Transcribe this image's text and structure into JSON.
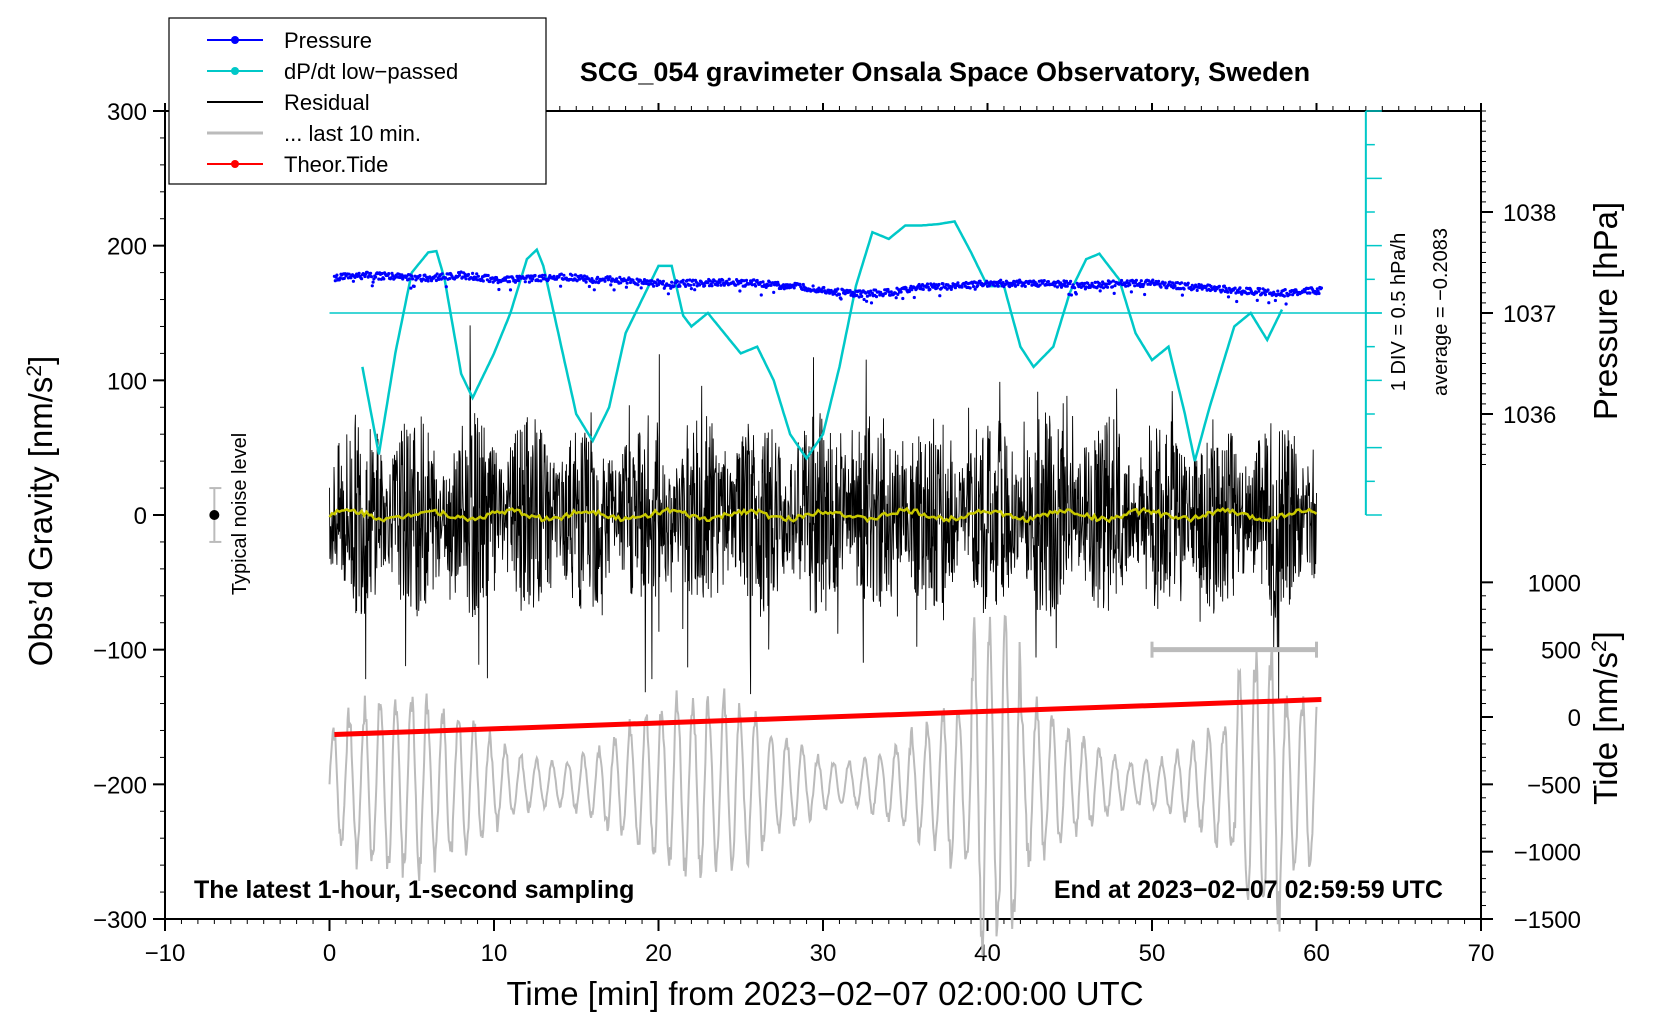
{
  "chart_data": {
    "type": "line",
    "title": "SCG_054 gravimeter Onsala Space Observatory, Sweden",
    "xlabel": "Time [min] from 2023−02−07 02:00:00 UTC",
    "ylabel_main": "Obs’d Gravity [nm/s",
    "ylabel_sup": "2",
    "ylabel_close": "]",
    "ylabel_pressure": "Pressure [hPa]",
    "ylabel_tide": "Tide [nm/s",
    "ylabel_tide_sup": "2",
    "ylabel_tide_close": "]",
    "xlim": [
      -10,
      70
    ],
    "ylim": [
      -300,
      300
    ],
    "x_ticks": [
      -10,
      0,
      10,
      20,
      30,
      40,
      50,
      60,
      70
    ],
    "x_tick_labels": [
      "−10",
      "0",
      "10",
      "20",
      "30",
      "40",
      "50",
      "60",
      "70"
    ],
    "y_ticks": [
      300,
      200,
      100,
      0,
      -100,
      -200,
      -300
    ],
    "y_tick_labels": [
      "300",
      "200",
      "100",
      "0",
      "−100",
      "−200",
      "−300"
    ],
    "pressure_ticks": [
      1038,
      1037,
      1036
    ],
    "pressure_tick_labels": [
      "1038",
      "1037",
      "1036"
    ],
    "pressure_axis": {
      "gravity_at_1037": 150,
      "gravity_per_hpa": 75
    },
    "tide_ticks": [
      1000,
      500,
      0,
      -500,
      -1000,
      -1500
    ],
    "tide_tick_labels": [
      "1000",
      "500",
      "0",
      "−500",
      "−1000",
      "−1500"
    ],
    "tide_axis": {
      "gravity_at_zero": -150,
      "gravity_per_unit": 0.1
    },
    "dpdt_axis": {
      "div_label": "1 DIV = 0.5 hPa/h",
      "average_label": "average = −0.2083",
      "x_position": 63,
      "y_range": [
        0,
        300
      ],
      "baseline": 150
    },
    "noise_level": {
      "label": "Typical noise level",
      "x": -7,
      "center": 0,
      "half_range": 20
    },
    "last_10_min_bar": {
      "x_range": [
        50,
        60
      ],
      "y": -100
    },
    "bottom_left_note": "The latest 1‑hour, 1‑second sampling",
    "bottom_right_note": "End at 2023−02−07 02:59:59 UTC",
    "legend": [
      {
        "label": "Pressure",
        "color": "#0000ff",
        "marker": true
      },
      {
        "label": "dP/dt low−passed",
        "color": "#00c8c8",
        "marker": true
      },
      {
        "label": "Residual",
        "color": "#000000",
        "marker": false
      },
      {
        "label": "... last 10 min.",
        "color": "#bbbbbb",
        "marker": false
      },
      {
        "label": "Theor.Tide",
        "color": "#ff0000",
        "marker": true
      }
    ],
    "series": [
      {
        "name": "Pressure",
        "color": "#0000ff",
        "axis": "gravity",
        "x": [
          0.3,
          2,
          4,
          6,
          8,
          10,
          12,
          14,
          16,
          18,
          20,
          22,
          24,
          26,
          28,
          30,
          32,
          34,
          36,
          38,
          40,
          42,
          44,
          46,
          48,
          50,
          52,
          54,
          56,
          58,
          60.3
        ],
        "values": [
          176,
          178,
          177,
          176,
          178,
          175,
          175,
          177,
          175,
          174,
          172,
          172,
          173,
          172,
          170,
          167,
          164,
          165,
          169,
          170,
          172,
          172,
          172,
          170,
          172,
          172,
          170,
          168,
          166,
          165,
          167
        ]
      },
      {
        "name": "dP/dt low−passed",
        "color": "#00c8c8",
        "axis": "gravity",
        "x": [
          2,
          3,
          4,
          5,
          6,
          6.5,
          7,
          8,
          8.7,
          10,
          11,
          12,
          12.6,
          13,
          14,
          15,
          16,
          17,
          18,
          19,
          20,
          20.8,
          21.5,
          22,
          23,
          24,
          25,
          26,
          27,
          28,
          29,
          30,
          31,
          32,
          33,
          34,
          35,
          36,
          37,
          38,
          39,
          40,
          41,
          42,
          42.8,
          44,
          45,
          46,
          46.8,
          48,
          49,
          50,
          51,
          52,
          52.6,
          53.5,
          55,
          56,
          57,
          58
        ],
        "values": [
          110,
          45,
          120,
          180,
          195,
          196,
          175,
          105,
          87,
          120,
          150,
          190,
          197,
          185,
          130,
          75,
          55,
          80,
          135,
          160,
          185,
          185,
          148,
          140,
          150,
          135,
          120,
          125,
          100,
          60,
          42,
          60,
          110,
          170,
          210,
          205,
          215,
          215,
          216,
          218,
          195,
          170,
          170,
          125,
          110,
          125,
          165,
          190,
          194,
          175,
          135,
          115,
          125,
          75,
          40,
          80,
          140,
          150,
          130,
          155
        ]
      },
      {
        "name": "Residual",
        "color": "#000000",
        "axis": "gravity",
        "x_range": [
          0,
          60
        ],
        "amplitude": 55
      },
      {
        "name": "... last 10 min.",
        "color": "#bbbbbb",
        "axis": "gravity",
        "x_range": [
          0,
          60
        ],
        "center": -200,
        "amplitude": 40
      },
      {
        "name": "Theor.Tide",
        "color": "#ff0000",
        "axis": "tide",
        "x": [
          0.3,
          60.3
        ],
        "values": [
          -130,
          130
        ]
      },
      {
        "name": "Residual mean",
        "color": "#c8c800",
        "axis": "gravity",
        "x_range": [
          0,
          60
        ],
        "center": 0,
        "amplitude": 3
      }
    ]
  }
}
